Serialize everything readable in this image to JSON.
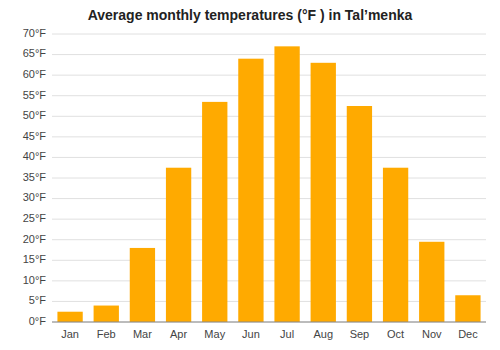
{
  "chart_data": {
    "type": "bar",
    "title": "Average monthly temperatures (°F ) in Talʼmenka",
    "categories": [
      "Jan",
      "Feb",
      "Mar",
      "Apr",
      "May",
      "Jun",
      "Jul",
      "Aug",
      "Sep",
      "Oct",
      "Nov",
      "Dec"
    ],
    "values": [
      2.5,
      4.0,
      18.0,
      37.5,
      53.5,
      64.0,
      67.0,
      63.0,
      52.5,
      37.5,
      19.5,
      6.5
    ],
    "color": "#FFAA00",
    "ylim": [
      0,
      70
    ],
    "yticks": [
      {
        "value": 0,
        "label": "0°F"
      },
      {
        "value": 5,
        "label": "5°F"
      },
      {
        "value": 10,
        "label": "10°F"
      },
      {
        "value": 15,
        "label": "15°F"
      },
      {
        "value": 20,
        "label": "20°F"
      },
      {
        "value": 25,
        "label": "25°F"
      },
      {
        "value": 30,
        "label": "30°F"
      },
      {
        "value": 35,
        "label": "35°F"
      },
      {
        "value": 40,
        "label": "40°F"
      },
      {
        "value": 45,
        "label": "45°F"
      },
      {
        "value": 50,
        "label": "50°F"
      },
      {
        "value": 55,
        "label": "55°F"
      },
      {
        "value": 60,
        "label": "60°F"
      },
      {
        "value": 65,
        "label": "65°F"
      },
      {
        "value": 70,
        "label": "70°F"
      }
    ],
    "grid": true
  }
}
